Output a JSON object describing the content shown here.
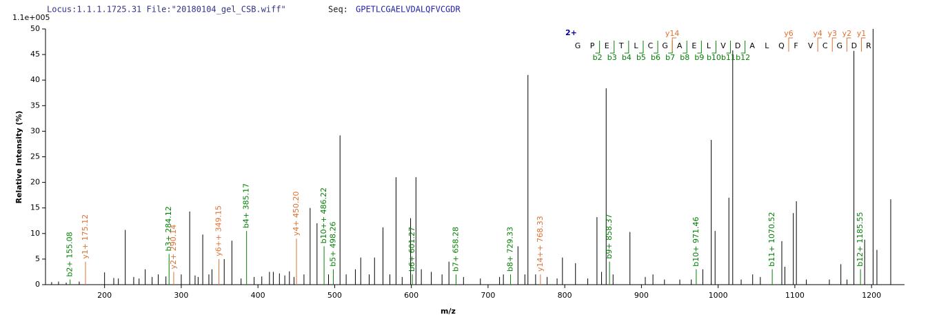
{
  "header": {
    "locus": "Locus:1.1.1.1725.31 File:\"20180104_gel_CSB.wiff\"",
    "seq_label": "Seq:",
    "seq": "GPETLCGAELVDALQFVCGDR"
  },
  "chart_data": {
    "type": "spectrum",
    "scale_label": "1.1e+005",
    "x_label": "m/z",
    "y_label": "Relative Intensity (%)",
    "xlim": [
      123,
      1243
    ],
    "xticks": [
      200,
      300,
      400,
      500,
      600,
      700,
      800,
      900,
      1000,
      1100,
      1200
    ],
    "ylim": [
      0,
      50
    ],
    "yticks": [
      0,
      5,
      10,
      15,
      20,
      25,
      30,
      35,
      40,
      45,
      50
    ],
    "peak_color": "#000000",
    "b_color": "#008000",
    "y_color": "#e07030",
    "x": [
      131,
      140,
      150,
      167,
      200,
      212,
      218,
      227,
      238,
      245,
      253,
      262,
      270,
      280,
      300,
      311,
      318,
      322,
      328,
      336,
      340,
      356,
      366,
      378,
      395,
      405,
      415,
      420,
      428,
      435,
      441,
      447,
      460,
      468,
      477,
      492,
      507,
      515,
      527,
      534,
      545,
      552,
      563,
      572,
      580,
      588,
      599,
      606,
      613,
      626,
      640,
      649,
      668,
      690,
      715,
      720,
      739,
      748,
      752,
      762,
      777,
      790,
      797,
      814,
      830,
      842,
      848,
      854,
      863,
      885,
      905,
      915,
      930,
      950,
      965,
      980,
      991,
      996,
      1014,
      1019,
      1030,
      1045,
      1055,
      1083,
      1087,
      1098,
      1102,
      1115,
      1145,
      1160,
      1168,
      1177,
      1191,
      1202,
      1207,
      1225
    ],
    "values": [
      0.5,
      0.6,
      0.4,
      0.6,
      2.4,
      1.3,
      1.2,
      10.7,
      1.5,
      1.2,
      3.0,
      1.5,
      2.0,
      1.6,
      2.0,
      14.3,
      1.8,
      1.5,
      9.8,
      2.0,
      3.0,
      5.0,
      8.6,
      1.2,
      1.5,
      1.6,
      2.5,
      2.5,
      2.2,
      1.8,
      2.6,
      1.5,
      2.0,
      15.0,
      12.0,
      2.0,
      29.2,
      2.0,
      3.0,
      5.3,
      2.0,
      5.3,
      11.2,
      2.0,
      21.0,
      1.5,
      13.0,
      21.0,
      3.0,
      2.5,
      2.0,
      4.5,
      1.5,
      1.2,
      1.5,
      2.0,
      7.5,
      2.0,
      41.0,
      2.0,
      1.5,
      1.2,
      5.3,
      4.2,
      1.2,
      13.2,
      2.5,
      38.4,
      2.0,
      10.3,
      1.5,
      2.0,
      1.0,
      1.0,
      1.0,
      3.0,
      28.3,
      10.5,
      17.0,
      45.8,
      1.0,
      2.0,
      1.5,
      8.5,
      3.5,
      14.0,
      16.3,
      1.0,
      1.0,
      4.0,
      1.0,
      45.7,
      8.8,
      50.0,
      6.8,
      16.7
    ],
    "annotations": [
      {
        "label": "b2+ 155.08",
        "ion": "b",
        "x": 155.08,
        "value": 1.0
      },
      {
        "label": "y1+ 175.12",
        "ion": "y",
        "x": 175.12,
        "value": 4.5
      },
      {
        "label": "b3+ 284.12",
        "ion": "b",
        "x": 284.12,
        "value": 6.0
      },
      {
        "label": "y2+ 290.14",
        "ion": "y",
        "x": 290.14,
        "value": 2.5
      },
      {
        "label": "y6++ 349.15",
        "ion": "y",
        "x": 349.15,
        "value": 5.0
      },
      {
        "label": "b4+ 385.17",
        "ion": "b",
        "x": 385.17,
        "value": 10.5
      },
      {
        "label": "y4+ 450.20",
        "ion": "y",
        "x": 450.2,
        "value": 9.0
      },
      {
        "label": "b10++ 486.22",
        "ion": "b",
        "x": 486.22,
        "value": 7.5
      },
      {
        "label": "b5+ 498.26",
        "ion": "b",
        "x": 498.26,
        "value": 3.0
      },
      {
        "label": "b6+ 601.27",
        "ion": "b",
        "x": 601.27,
        "value": 2.0
      },
      {
        "label": "b7+ 658.28",
        "ion": "b",
        "x": 658.28,
        "value": 2.0
      },
      {
        "label": "b8+ 729.33",
        "ion": "b",
        "x": 729.33,
        "value": 2.0
      },
      {
        "label": "y14++ 768.33",
        "ion": "y",
        "x": 768.33,
        "value": 2.0
      },
      {
        "label": "b9+ 858.37",
        "ion": "b",
        "x": 858.37,
        "value": 4.5
      },
      {
        "label": "b10+ 971.46",
        "ion": "b",
        "x": 971.46,
        "value": 3.0
      },
      {
        "label": "b11+ 1070.52",
        "ion": "b",
        "x": 1070.52,
        "value": 3.0
      },
      {
        "label": "b12+ 1185.55",
        "ion": "b",
        "x": 1185.55,
        "value": 3.0
      }
    ],
    "peptide": {
      "charge": "2+",
      "residues": [
        "G",
        "P",
        "E",
        "T",
        "L",
        "C",
        "G",
        "A",
        "E",
        "L",
        "V",
        "D",
        "A",
        "L",
        "Q",
        "F",
        "V",
        "C",
        "G",
        "D",
        "R"
      ],
      "b_ions": [
        "b2",
        "b3",
        "b4",
        "b5",
        "b6",
        "b7",
        "b8",
        "b9",
        "b10",
        "b11",
        "b12"
      ],
      "y_ions": [
        "y14",
        "y6",
        "y4",
        "y3",
        "y2",
        "y1"
      ]
    }
  }
}
